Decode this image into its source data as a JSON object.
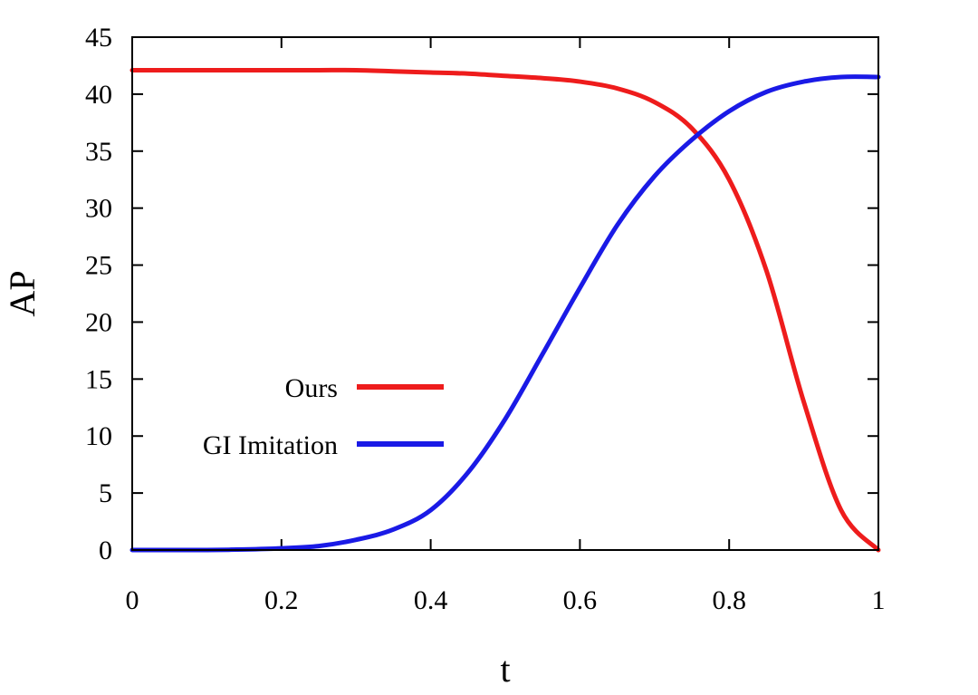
{
  "chart_data": {
    "type": "line",
    "title": "",
    "xlabel": "t",
    "ylabel": "AP",
    "xlim": [
      0,
      1
    ],
    "ylim": [
      0,
      45
    ],
    "xticks": [
      0,
      0.2,
      0.4,
      0.6,
      0.8,
      1
    ],
    "xtick_labels": [
      "0",
      "0.2",
      "0.4",
      "0.6",
      "0.8",
      "1"
    ],
    "yticks": [
      0,
      5,
      10,
      15,
      20,
      25,
      30,
      35,
      40,
      45
    ],
    "ytick_labels": [
      "0",
      "5",
      "10",
      "15",
      "20",
      "25",
      "30",
      "35",
      "40",
      "45"
    ],
    "grid": false,
    "legend_position": "bottom-left",
    "x": [
      0,
      0.05,
      0.1,
      0.15,
      0.2,
      0.25,
      0.3,
      0.35,
      0.4,
      0.45,
      0.5,
      0.55,
      0.6,
      0.65,
      0.7,
      0.75,
      0.8,
      0.85,
      0.9,
      0.95,
      1
    ],
    "series": [
      {
        "name": "Ours",
        "color": "#ee1c1c",
        "values": [
          42.1,
          42.1,
          42.1,
          42.1,
          42.1,
          42.1,
          42.1,
          42.0,
          41.9,
          41.8,
          41.6,
          41.4,
          41.1,
          40.5,
          39.3,
          37.0,
          32.5,
          24.5,
          13.0,
          3.5,
          0.0
        ]
      },
      {
        "name": "GI Imitation",
        "color": "#1a1ae6",
        "values": [
          0.0,
          0.0,
          0.0,
          0.05,
          0.15,
          0.35,
          0.9,
          1.8,
          3.5,
          6.8,
          11.5,
          17.2,
          23.0,
          28.5,
          32.8,
          36.0,
          38.5,
          40.2,
          41.1,
          41.5,
          41.5
        ]
      }
    ]
  }
}
